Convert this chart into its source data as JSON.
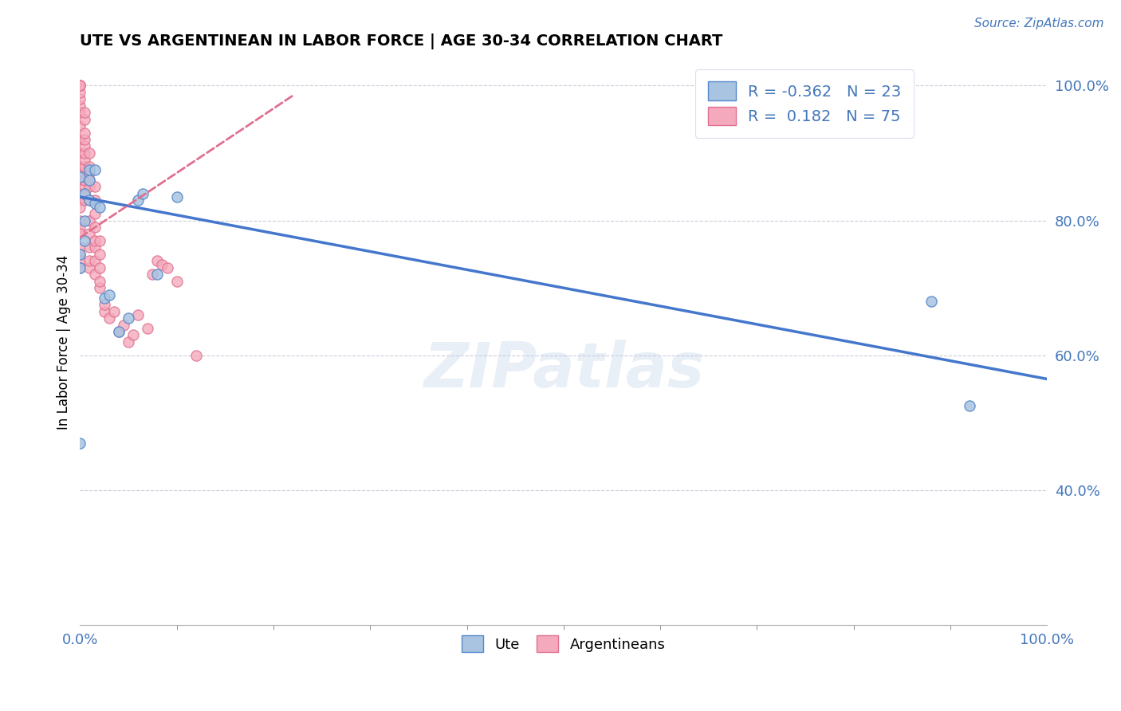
{
  "title": "UTE VS ARGENTINEAN IN LABOR FORCE | AGE 30-34 CORRELATION CHART",
  "source_text": "Source: ZipAtlas.com",
  "ylabel": "In Labor Force | Age 30-34",
  "xlim": [
    0.0,
    1.0
  ],
  "ylim": [
    0.2,
    1.04
  ],
  "blue_R": -0.362,
  "blue_N": 23,
  "pink_R": 0.182,
  "pink_N": 75,
  "blue_color": "#A8C4E0",
  "pink_color": "#F4AABC",
  "blue_edge_color": "#5588CC",
  "pink_edge_color": "#E07090",
  "blue_line_color": "#4477CC",
  "pink_line_color": "#E07090",
  "watermark": "ZIPatlas",
  "title_fontsize": 14,
  "axis_tick_color": "#4477BB",
  "grid_color": "#CCCCDD",
  "blue_trend_x0": 0.0,
  "blue_trend_y0": 0.835,
  "blue_trend_x1": 1.0,
  "blue_trend_y1": 0.565,
  "pink_trend_x0": 0.0,
  "pink_trend_y0": 0.775,
  "pink_trend_x1": 0.22,
  "pink_trend_y1": 0.985,
  "ute_x": [
    0.0,
    0.0,
    0.0,
    0.0,
    0.005,
    0.005,
    0.005,
    0.01,
    0.01,
    0.01,
    0.015,
    0.015,
    0.02,
    0.025,
    0.03,
    0.04,
    0.05,
    0.06,
    0.065,
    0.08,
    0.1,
    0.88,
    0.92
  ],
  "ute_y": [
    0.47,
    0.73,
    0.75,
    0.865,
    0.77,
    0.8,
    0.84,
    0.83,
    0.86,
    0.875,
    0.825,
    0.875,
    0.82,
    0.685,
    0.69,
    0.635,
    0.655,
    0.83,
    0.84,
    0.72,
    0.835,
    0.68,
    0.525
  ],
  "arg_x": [
    0.0,
    0.0,
    0.0,
    0.0,
    0.0,
    0.0,
    0.0,
    0.0,
    0.0,
    0.0,
    0.0,
    0.0,
    0.0,
    0.0,
    0.0,
    0.0,
    0.0,
    0.0,
    0.0,
    0.0,
    0.0,
    0.0,
    0.005,
    0.005,
    0.005,
    0.005,
    0.005,
    0.005,
    0.005,
    0.005,
    0.005,
    0.005,
    0.005,
    0.005,
    0.005,
    0.01,
    0.01,
    0.01,
    0.01,
    0.01,
    0.01,
    0.01,
    0.01,
    0.01,
    0.01,
    0.01,
    0.015,
    0.015,
    0.015,
    0.015,
    0.015,
    0.015,
    0.015,
    0.015,
    0.02,
    0.02,
    0.02,
    0.02,
    0.02,
    0.025,
    0.025,
    0.03,
    0.035,
    0.04,
    0.045,
    0.05,
    0.055,
    0.06,
    0.07,
    0.075,
    0.08,
    0.085,
    0.09,
    0.1,
    0.12
  ],
  "arg_y": [
    0.84,
    0.86,
    0.88,
    0.9,
    0.92,
    0.94,
    0.96,
    0.97,
    0.98,
    0.99,
    1.0,
    1.0,
    1.0,
    0.83,
    0.82,
    0.8,
    0.79,
    0.78,
    0.76,
    0.75,
    0.74,
    0.73,
    0.83,
    0.84,
    0.85,
    0.86,
    0.87,
    0.88,
    0.89,
    0.9,
    0.91,
    0.92,
    0.93,
    0.95,
    0.96,
    0.73,
    0.74,
    0.76,
    0.78,
    0.8,
    0.83,
    0.85,
    0.86,
    0.87,
    0.88,
    0.9,
    0.72,
    0.74,
    0.76,
    0.77,
    0.79,
    0.81,
    0.83,
    0.85,
    0.7,
    0.71,
    0.73,
    0.75,
    0.77,
    0.665,
    0.675,
    0.655,
    0.665,
    0.635,
    0.645,
    0.62,
    0.63,
    0.66,
    0.64,
    0.72,
    0.74,
    0.735,
    0.73,
    0.71,
    0.6
  ]
}
